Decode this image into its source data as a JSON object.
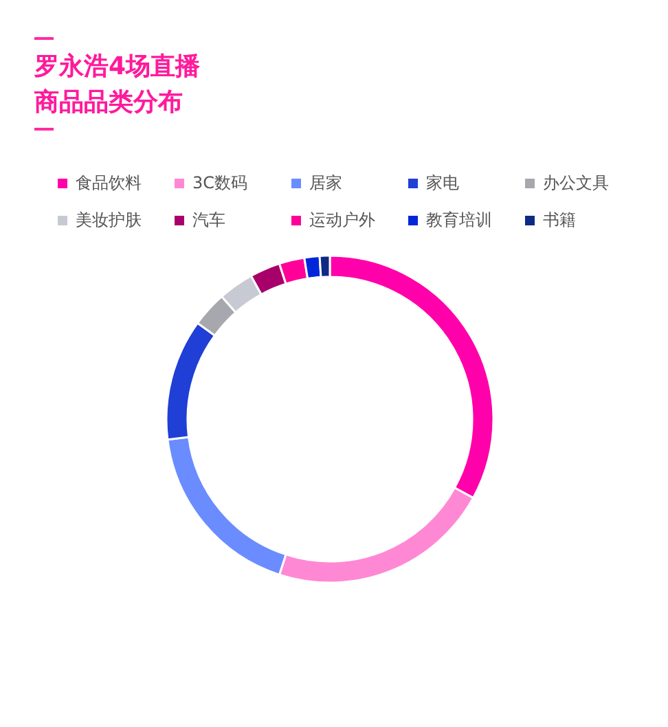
{
  "chart_data": {
    "type": "donut",
    "title": "罗永浩4场直播商品品类分布",
    "categories": [
      "食品饮料",
      "3C数码",
      "居家",
      "家电",
      "办公文具",
      "美妆护肤",
      "汽车",
      "运动户外",
      "教育培训",
      "书籍"
    ],
    "values": [
      33,
      22,
      18,
      12,
      3.5,
      3.5,
      3,
      2.5,
      1.5,
      1
    ],
    "colors": [
      "#ff00aa",
      "#ff88d4",
      "#6b8cff",
      "#1f3fd6",
      "#a6a8ad",
      "#c8cad3",
      "#a8006a",
      "#ff0099",
      "#0026d9",
      "#0d2a85"
    ],
    "legend": "top"
  }
}
